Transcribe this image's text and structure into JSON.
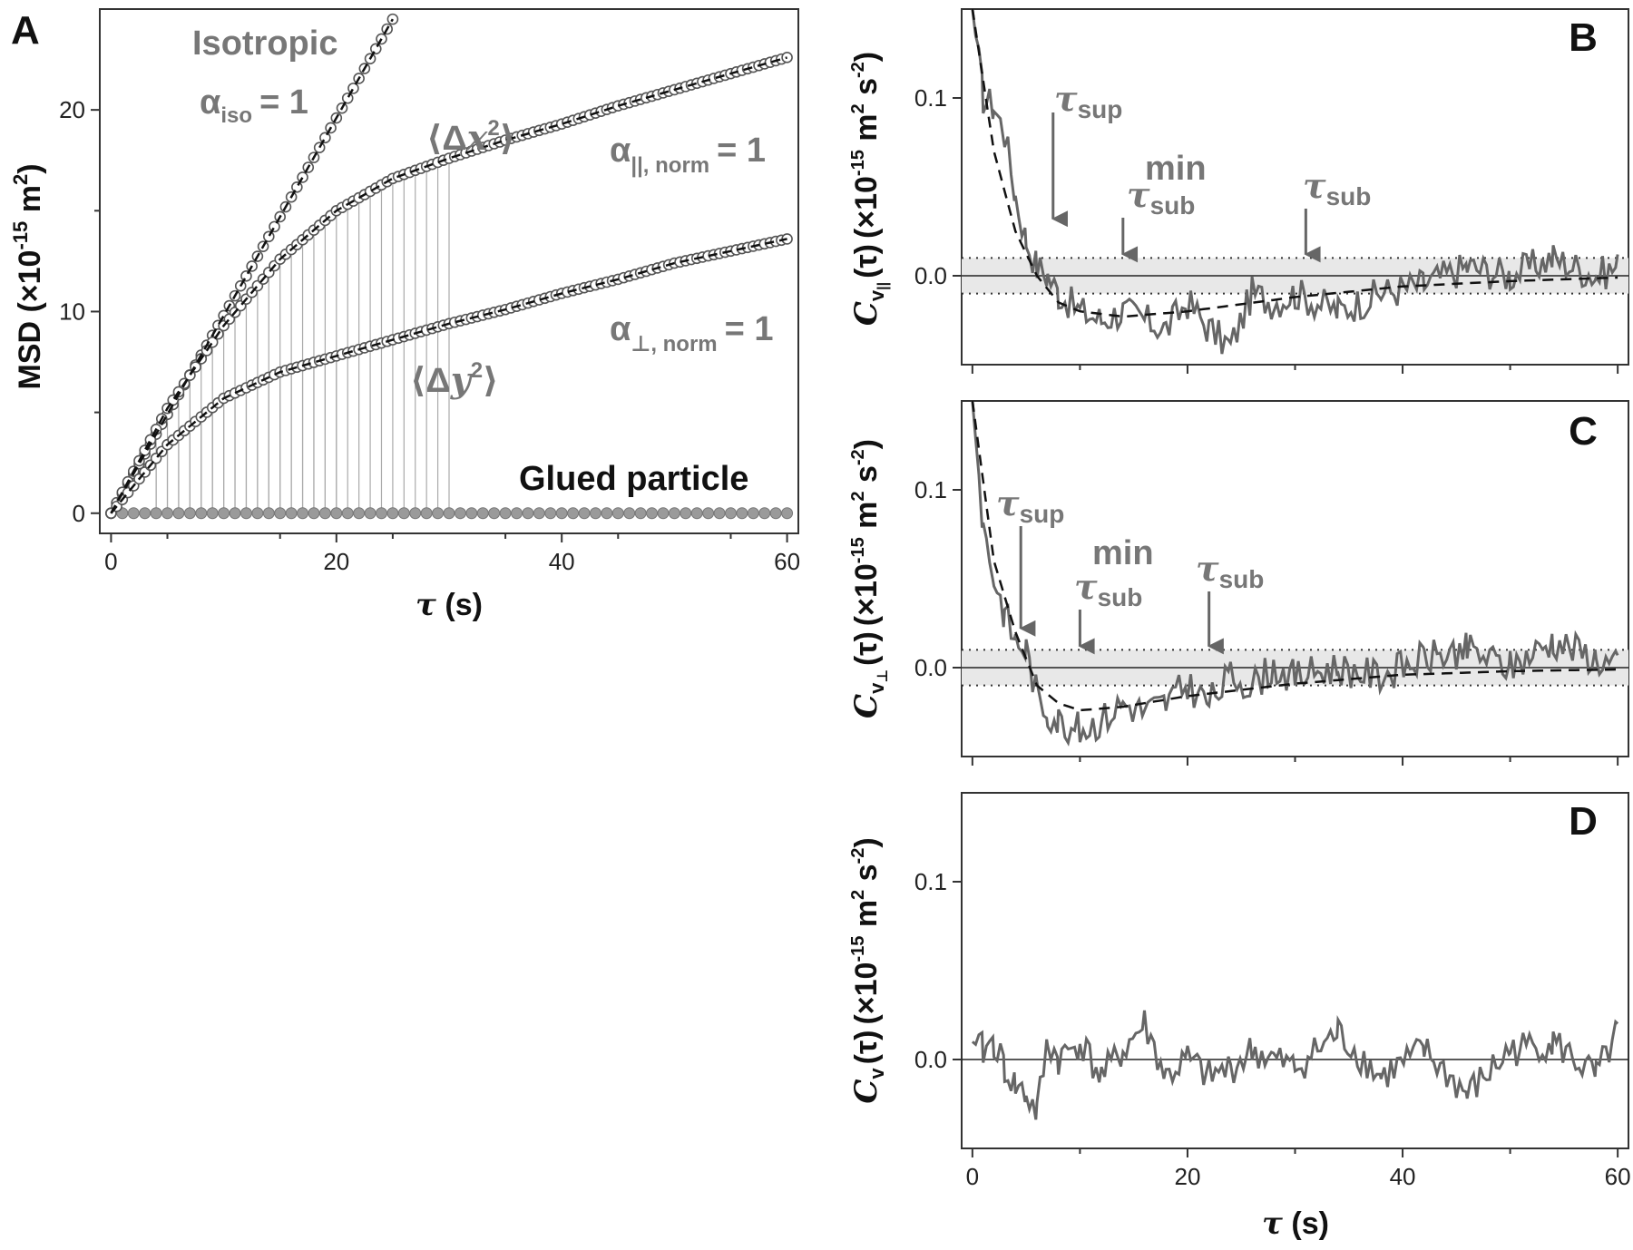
{
  "chart_data": [
    {
      "type": "scatter",
      "panel": "A",
      "xlabel": "τ (s)",
      "ylabel": "MSD (×10⁻¹⁵ m²)",
      "xlim": [
        -1,
        61
      ],
      "ylim": [
        -1,
        25
      ],
      "xticks": [
        "0",
        "20",
        "40",
        "60"
      ],
      "yticks": [
        "0",
        "10",
        "20"
      ],
      "grid": false,
      "series": [
        {
          "name": "Isotropic",
          "x": [
            0,
            5,
            10,
            15,
            20,
            25
          ],
          "y": [
            0,
            4.9,
            9.8,
            14.7,
            19.6,
            24.5
          ]
        },
        {
          "name": "⟨Δx²⟩",
          "x": [
            0,
            5,
            10,
            15,
            20,
            25,
            30,
            35,
            40,
            45,
            50,
            55,
            60
          ],
          "y": [
            0,
            5.2,
            9.3,
            12.6,
            15.0,
            16.6,
            17.6,
            18.5,
            19.3,
            20.2,
            21.0,
            21.8,
            22.6
          ]
        },
        {
          "name": "⟨Δy²⟩",
          "x": [
            0,
            5,
            10,
            15,
            20,
            25,
            30,
            35,
            40,
            45,
            50,
            55,
            60
          ],
          "y": [
            0,
            3.4,
            5.7,
            7.0,
            7.8,
            8.6,
            9.4,
            10.1,
            10.9,
            11.6,
            12.4,
            13.0,
            13.6
          ]
        },
        {
          "name": "Glued particle",
          "x": [
            0,
            10,
            20,
            30,
            40,
            50,
            60
          ],
          "y": [
            0,
            0,
            0,
            0,
            0,
            0,
            0
          ]
        }
      ],
      "annotations": {
        "isotropic": "Isotropic",
        "alpha_iso_sym": "α",
        "alpha_iso_sub": "iso",
        "alpha_iso_val": "= 1",
        "dx2_open": "⟨Δ",
        "dx2_var": "x",
        "dx2_sup": "2",
        "dx2_close": "⟩",
        "dy2_open": "⟨Δ",
        "dy2_var": "y",
        "dy2_sup": "2",
        "dy2_close": "⟩",
        "alpha_par_sym": "α",
        "alpha_par_sub": "||, norm",
        "alpha_par_val": "= 1",
        "alpha_perp_sym": "α",
        "alpha_perp_sub": "⊥, norm",
        "alpha_perp_val": "= 1",
        "glued": "Glued particle"
      }
    },
    {
      "type": "line",
      "panel": "B",
      "ylabel": "C_v∥(τ) (×10⁻¹⁵ m² s⁻²)",
      "xlim": [
        -1,
        61
      ],
      "ylim": [
        -0.05,
        0.15
      ],
      "yticks": [
        "0.0",
        "0.1"
      ],
      "band": [
        -0.01,
        0.01
      ],
      "series": [
        {
          "name": "data",
          "x": [
            0,
            1,
            2,
            3,
            4,
            5,
            6,
            7,
            8,
            10,
            12,
            14,
            16,
            18,
            20,
            22,
            24,
            26,
            28,
            30,
            34,
            38,
            42,
            46,
            50,
            54,
            58,
            60
          ],
          "y": [
            0.15,
            0.1,
            0.095,
            0.08,
            0.045,
            0.02,
            0.005,
            0.0,
            -0.01,
            -0.02,
            -0.025,
            -0.02,
            -0.025,
            -0.03,
            -0.015,
            -0.03,
            -0.04,
            -0.01,
            -0.015,
            -0.01,
            -0.02,
            -0.01,
            -0.005,
            0.005,
            0.0,
            0.01,
            0.0,
            0.005
          ]
        },
        {
          "name": "fit",
          "x": [
            0,
            2,
            4,
            6,
            8,
            10,
            14,
            20,
            30,
            40,
            50,
            60
          ],
          "y": [
            0.15,
            0.07,
            0.025,
            0.0,
            -0.015,
            -0.02,
            -0.023,
            -0.02,
            -0.012,
            -0.006,
            -0.003,
            -0.001
          ]
        }
      ],
      "arrows": [
        {
          "label": "sup",
          "x": 7.5
        },
        {
          "label": "sub_min",
          "x": 14
        },
        {
          "label": "sub",
          "x": 31
        }
      ],
      "tau_sym": "τ",
      "sup_sub": "sup",
      "sub_sub": "sub",
      "min_sup": "min"
    },
    {
      "type": "line",
      "panel": "C",
      "ylabel": "C_v⊥(τ) (×10⁻¹⁵ m² s⁻²)",
      "xlim": [
        -1,
        61
      ],
      "ylim": [
        -0.05,
        0.15
      ],
      "yticks": [
        "0.0",
        "0.1"
      ],
      "band": [
        -0.01,
        0.01
      ],
      "series": [
        {
          "name": "data",
          "x": [
            0,
            1,
            2,
            3,
            4,
            5,
            6,
            7,
            8,
            10,
            12,
            14,
            16,
            18,
            20,
            22,
            24,
            26,
            28,
            30,
            34,
            38,
            42,
            46,
            50,
            54,
            58,
            60
          ],
          "y": [
            0.15,
            0.08,
            0.05,
            0.03,
            0.015,
            0.01,
            -0.015,
            -0.025,
            -0.03,
            -0.035,
            -0.03,
            -0.02,
            -0.025,
            -0.02,
            -0.01,
            -0.02,
            -0.005,
            -0.01,
            0.0,
            -0.005,
            0.0,
            -0.005,
            0.005,
            0.01,
            0.0,
            0.015,
            0.005,
            0.0
          ]
        },
        {
          "name": "fit",
          "x": [
            0,
            2,
            4,
            6,
            8,
            10,
            14,
            20,
            30,
            40,
            50,
            60
          ],
          "y": [
            0.15,
            0.06,
            0.02,
            -0.01,
            -0.02,
            -0.024,
            -0.022,
            -0.016,
            -0.009,
            -0.004,
            -0.002,
            -0.001
          ]
        }
      ],
      "arrows": [
        {
          "label": "sup",
          "x": 4.5
        },
        {
          "label": "sub_min",
          "x": 10
        },
        {
          "label": "sub",
          "x": 22
        }
      ],
      "tau_sym": "τ",
      "sup_sub": "sup",
      "sub_sub": "sub",
      "min_sup": "min"
    },
    {
      "type": "line",
      "panel": "D",
      "xlabel": "τ (s)",
      "ylabel": "C_v(τ) (×10⁻¹⁵ m² s⁻²)",
      "xlim": [
        -1,
        61
      ],
      "ylim": [
        -0.05,
        0.15
      ],
      "xticks": [
        "0",
        "20",
        "40",
        "60"
      ],
      "yticks": [
        "0.0",
        "0.1"
      ],
      "series": [
        {
          "name": "data",
          "x": [
            0,
            1,
            2,
            3,
            4,
            5,
            6,
            7,
            8,
            10,
            12,
            14,
            16,
            18,
            20,
            22,
            24,
            26,
            28,
            30,
            34,
            38,
            42,
            46,
            50,
            54,
            58,
            60
          ],
          "y": [
            0.01,
            0.005,
            0.01,
            -0.005,
            -0.015,
            -0.02,
            -0.03,
            0.01,
            0.0,
            0.01,
            -0.01,
            0.005,
            0.02,
            -0.01,
            0.0,
            -0.01,
            -0.005,
            0.005,
            0.0,
            -0.005,
            0.015,
            -0.01,
            0.005,
            -0.02,
            0.005,
            0.01,
            -0.01,
            0.015
          ]
        }
      ]
    }
  ],
  "labels": {
    "panel_a": "A",
    "panel_b": "B",
    "panel_c": "C",
    "panel_d": "D",
    "msd_prefix": "MSD (×10",
    "msd_exp": "-15",
    "msd_unit": " m",
    "msd_unit_exp": "2",
    "msd_suffix": ")",
    "tau": "τ",
    "s_unit": " (s)",
    "c_letter": "C",
    "v_sub": "v",
    "par_sub": "||",
    "perp_sub": "⊥",
    "tau_paren": "(τ)",
    "units_prefix": "(×10",
    "units_exp": "-15",
    "units_mid": " m",
    "units_exp2": "2",
    "units_s": " s",
    "units_exp3": "-2",
    "units_close": ")"
  },
  "colors": {
    "data_line": "#666666",
    "fit_line": "#111111",
    "band": "#e8e8e8",
    "marker_edge": "#555555",
    "glued_marker": "#9a9a9a"
  }
}
